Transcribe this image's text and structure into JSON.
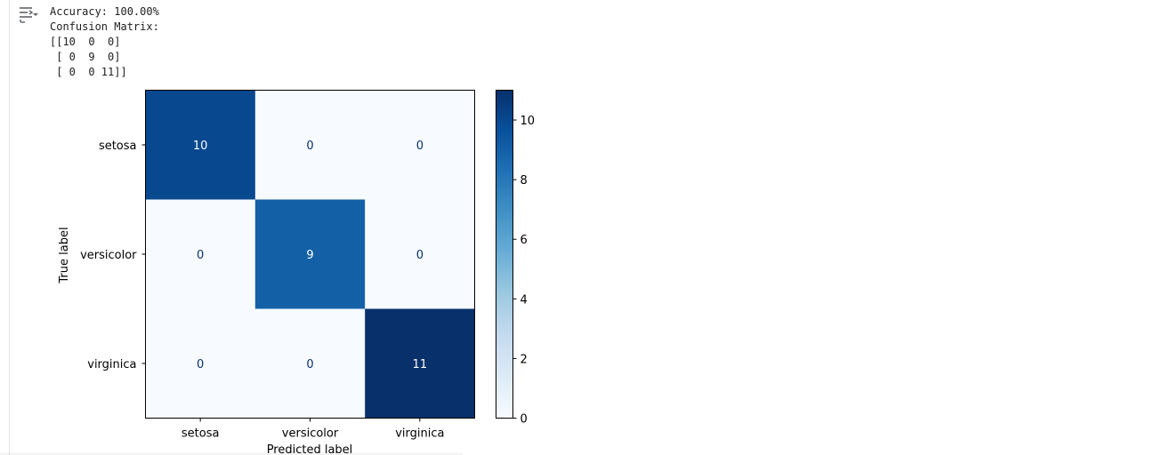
{
  "output": {
    "toggle_icon": "collapse-output-icon",
    "lines": [
      "Accuracy: 100.00%",
      "Confusion Matrix:",
      "[[10  0  0]",
      " [ 0  9  0]",
      " [ 0  0 11]]"
    ]
  },
  "chart_data": {
    "type": "heatmap",
    "colormap": "Blues",
    "xlabel": "Predicted label",
    "ylabel": "True label",
    "x_categories": [
      "setosa",
      "versicolor",
      "virginica"
    ],
    "y_categories": [
      "setosa",
      "versicolor",
      "virginica"
    ],
    "values": [
      [
        10,
        0,
        0
      ],
      [
        0,
        9,
        0
      ],
      [
        0,
        0,
        11
      ]
    ],
    "colorbar": {
      "min": 0,
      "max": 11,
      "ticks": [
        0,
        2,
        4,
        6,
        8,
        10
      ]
    }
  }
}
